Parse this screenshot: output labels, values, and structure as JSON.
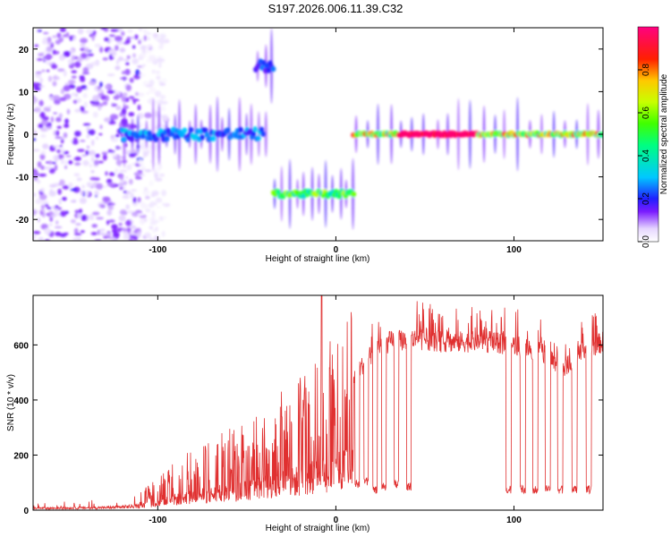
{
  "title": "S197.2026.006.11.39.C32",
  "charts": [
    {
      "type": "heatmap",
      "xlabel": "Height of straight line (km)",
      "ylabel": "Frequency (Hz)",
      "xlim": [
        -170,
        150
      ],
      "ylim": [
        -25,
        25
      ],
      "xticks": [
        -100,
        0,
        100
      ],
      "yticks": [
        -20,
        -10,
        0,
        10,
        20
      ],
      "colorbar": {
        "label": "Normalized spectral amplitude",
        "range": [
          0,
          1
        ],
        "ticks": [
          0.0,
          0.2,
          0.4,
          0.6,
          0.8
        ]
      },
      "features": [
        {
          "name": "diffuse noise",
          "x_range": [
            -170,
            -110
          ],
          "freq_range": [
            -25,
            25
          ],
          "amplitude": 0.05
        },
        {
          "name": "band near 0 Hz",
          "x_range": [
            -120,
            -40
          ],
          "freq_center": 0,
          "amplitude": 0.3
        },
        {
          "name": "high tone",
          "x_range": [
            -45,
            -35
          ],
          "freq_center": 16,
          "amplitude": 0.25
        },
        {
          "name": "low tone",
          "x_range": [
            -35,
            10
          ],
          "freq_center": -14,
          "amplitude": 0.6
        },
        {
          "name": "strong tone near 0 Hz",
          "x_range": [
            10,
            150
          ],
          "freq_center": 0,
          "amplitude": 0.95
        }
      ]
    },
    {
      "type": "line",
      "xlabel": "Height of straight line (km)",
      "ylabel": "SNR (10 * v/v)",
      "xlim": [
        -170,
        150
      ],
      "ylim": [
        0,
        780
      ],
      "xticks": [
        -100,
        0,
        100
      ],
      "yticks": [
        0,
        200,
        400,
        600
      ],
      "color": "#e03030",
      "envelope": {
        "x": [
          -170,
          -140,
          -125,
          -110,
          -100,
          -90,
          -80,
          -70,
          -60,
          -50,
          -40,
          -30,
          -20,
          -10,
          0,
          10,
          20,
          30,
          40,
          50,
          60,
          80,
          100,
          110,
          120,
          125,
          130,
          140,
          150
        ],
        "y": [
          20,
          25,
          30,
          45,
          80,
          120,
          150,
          170,
          200,
          220,
          250,
          290,
          330,
          380,
          430,
          520,
          600,
          650,
          660,
          660,
          650,
          650,
          640,
          620,
          600,
          540,
          560,
          620,
          650
        ]
      },
      "dropouts": [
        {
          "x": 12,
          "floor": 80
        },
        {
          "x": 17,
          "floor": 90
        },
        {
          "x": 22,
          "floor": 60
        },
        {
          "x": 27,
          "floor": 70
        },
        {
          "x": 34,
          "floor": 80
        },
        {
          "x": 41,
          "floor": 70
        },
        {
          "x": 97,
          "floor": 60
        },
        {
          "x": 105,
          "floor": 60
        },
        {
          "x": 112,
          "floor": 60
        },
        {
          "x": 119,
          "floor": 60
        },
        {
          "x": 126,
          "floor": 60
        },
        {
          "x": 134,
          "floor": 60
        },
        {
          "x": 142,
          "floor": 60
        }
      ]
    }
  ]
}
